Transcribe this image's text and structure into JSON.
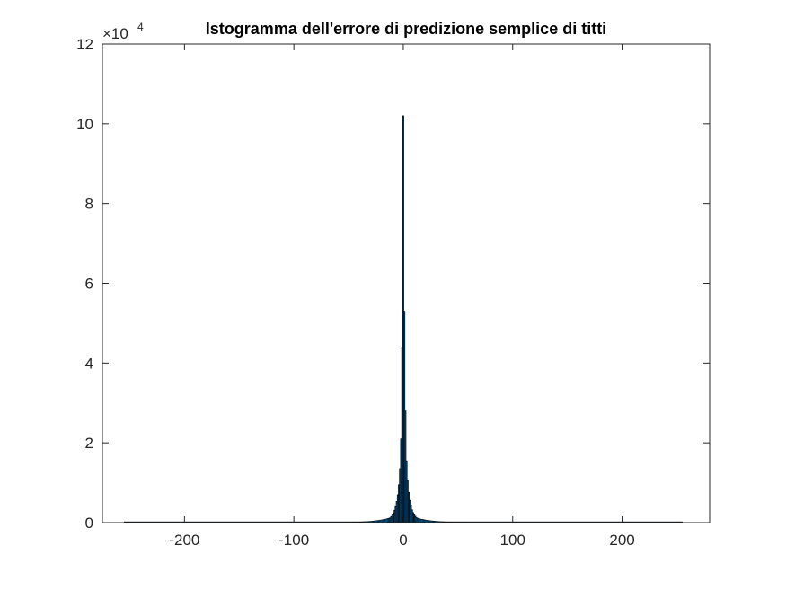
{
  "chart_data": {
    "type": "bar",
    "title": "Istogramma dell'errore di predizione semplice di titti",
    "xlabel": "",
    "ylabel": "",
    "xlim": [
      -275,
      280
    ],
    "ylim": [
      0,
      120000
    ],
    "y_exponent_prefix": "×10",
    "y_exponent": "4",
    "xticks": [
      -200,
      -100,
      0,
      100,
      200
    ],
    "xtick_labels": [
      "-200",
      "-100",
      "0",
      "100",
      "200"
    ],
    "yticks": [
      0,
      20000,
      40000,
      60000,
      80000,
      100000,
      120000
    ],
    "ytick_labels": [
      "0",
      "2",
      "4",
      "6",
      "8",
      "10",
      "12"
    ],
    "grid": false,
    "colors": {
      "bar_fill": "#0072bd",
      "bar_edge": "#000000",
      "axis": "#262626"
    },
    "x": [
      -255,
      255
    ],
    "peak_values": [
      {
        "x": -12,
        "y": 1200
      },
      {
        "x": -11,
        "y": 1500
      },
      {
        "x": -10,
        "y": 1900
      },
      {
        "x": -9,
        "y": 2400
      },
      {
        "x": -8,
        "y": 3100
      },
      {
        "x": -7,
        "y": 4000
      },
      {
        "x": -6,
        "y": 5300
      },
      {
        "x": -5,
        "y": 7000
      },
      {
        "x": -4,
        "y": 9500
      },
      {
        "x": -3,
        "y": 13500
      },
      {
        "x": -2,
        "y": 21000
      },
      {
        "x": -1,
        "y": 44000
      },
      {
        "x": 0,
        "y": 102000
      },
      {
        "x": 1,
        "y": 53000
      },
      {
        "x": 2,
        "y": 28000
      },
      {
        "x": 3,
        "y": 15500
      },
      {
        "x": 4,
        "y": 10500
      },
      {
        "x": 5,
        "y": 7600
      },
      {
        "x": 6,
        "y": 5600
      },
      {
        "x": 7,
        "y": 4200
      },
      {
        "x": 8,
        "y": 3200
      },
      {
        "x": 9,
        "y": 2500
      },
      {
        "x": 10,
        "y": 2000
      },
      {
        "x": 11,
        "y": 1600
      },
      {
        "x": 12,
        "y": 1300
      }
    ]
  }
}
